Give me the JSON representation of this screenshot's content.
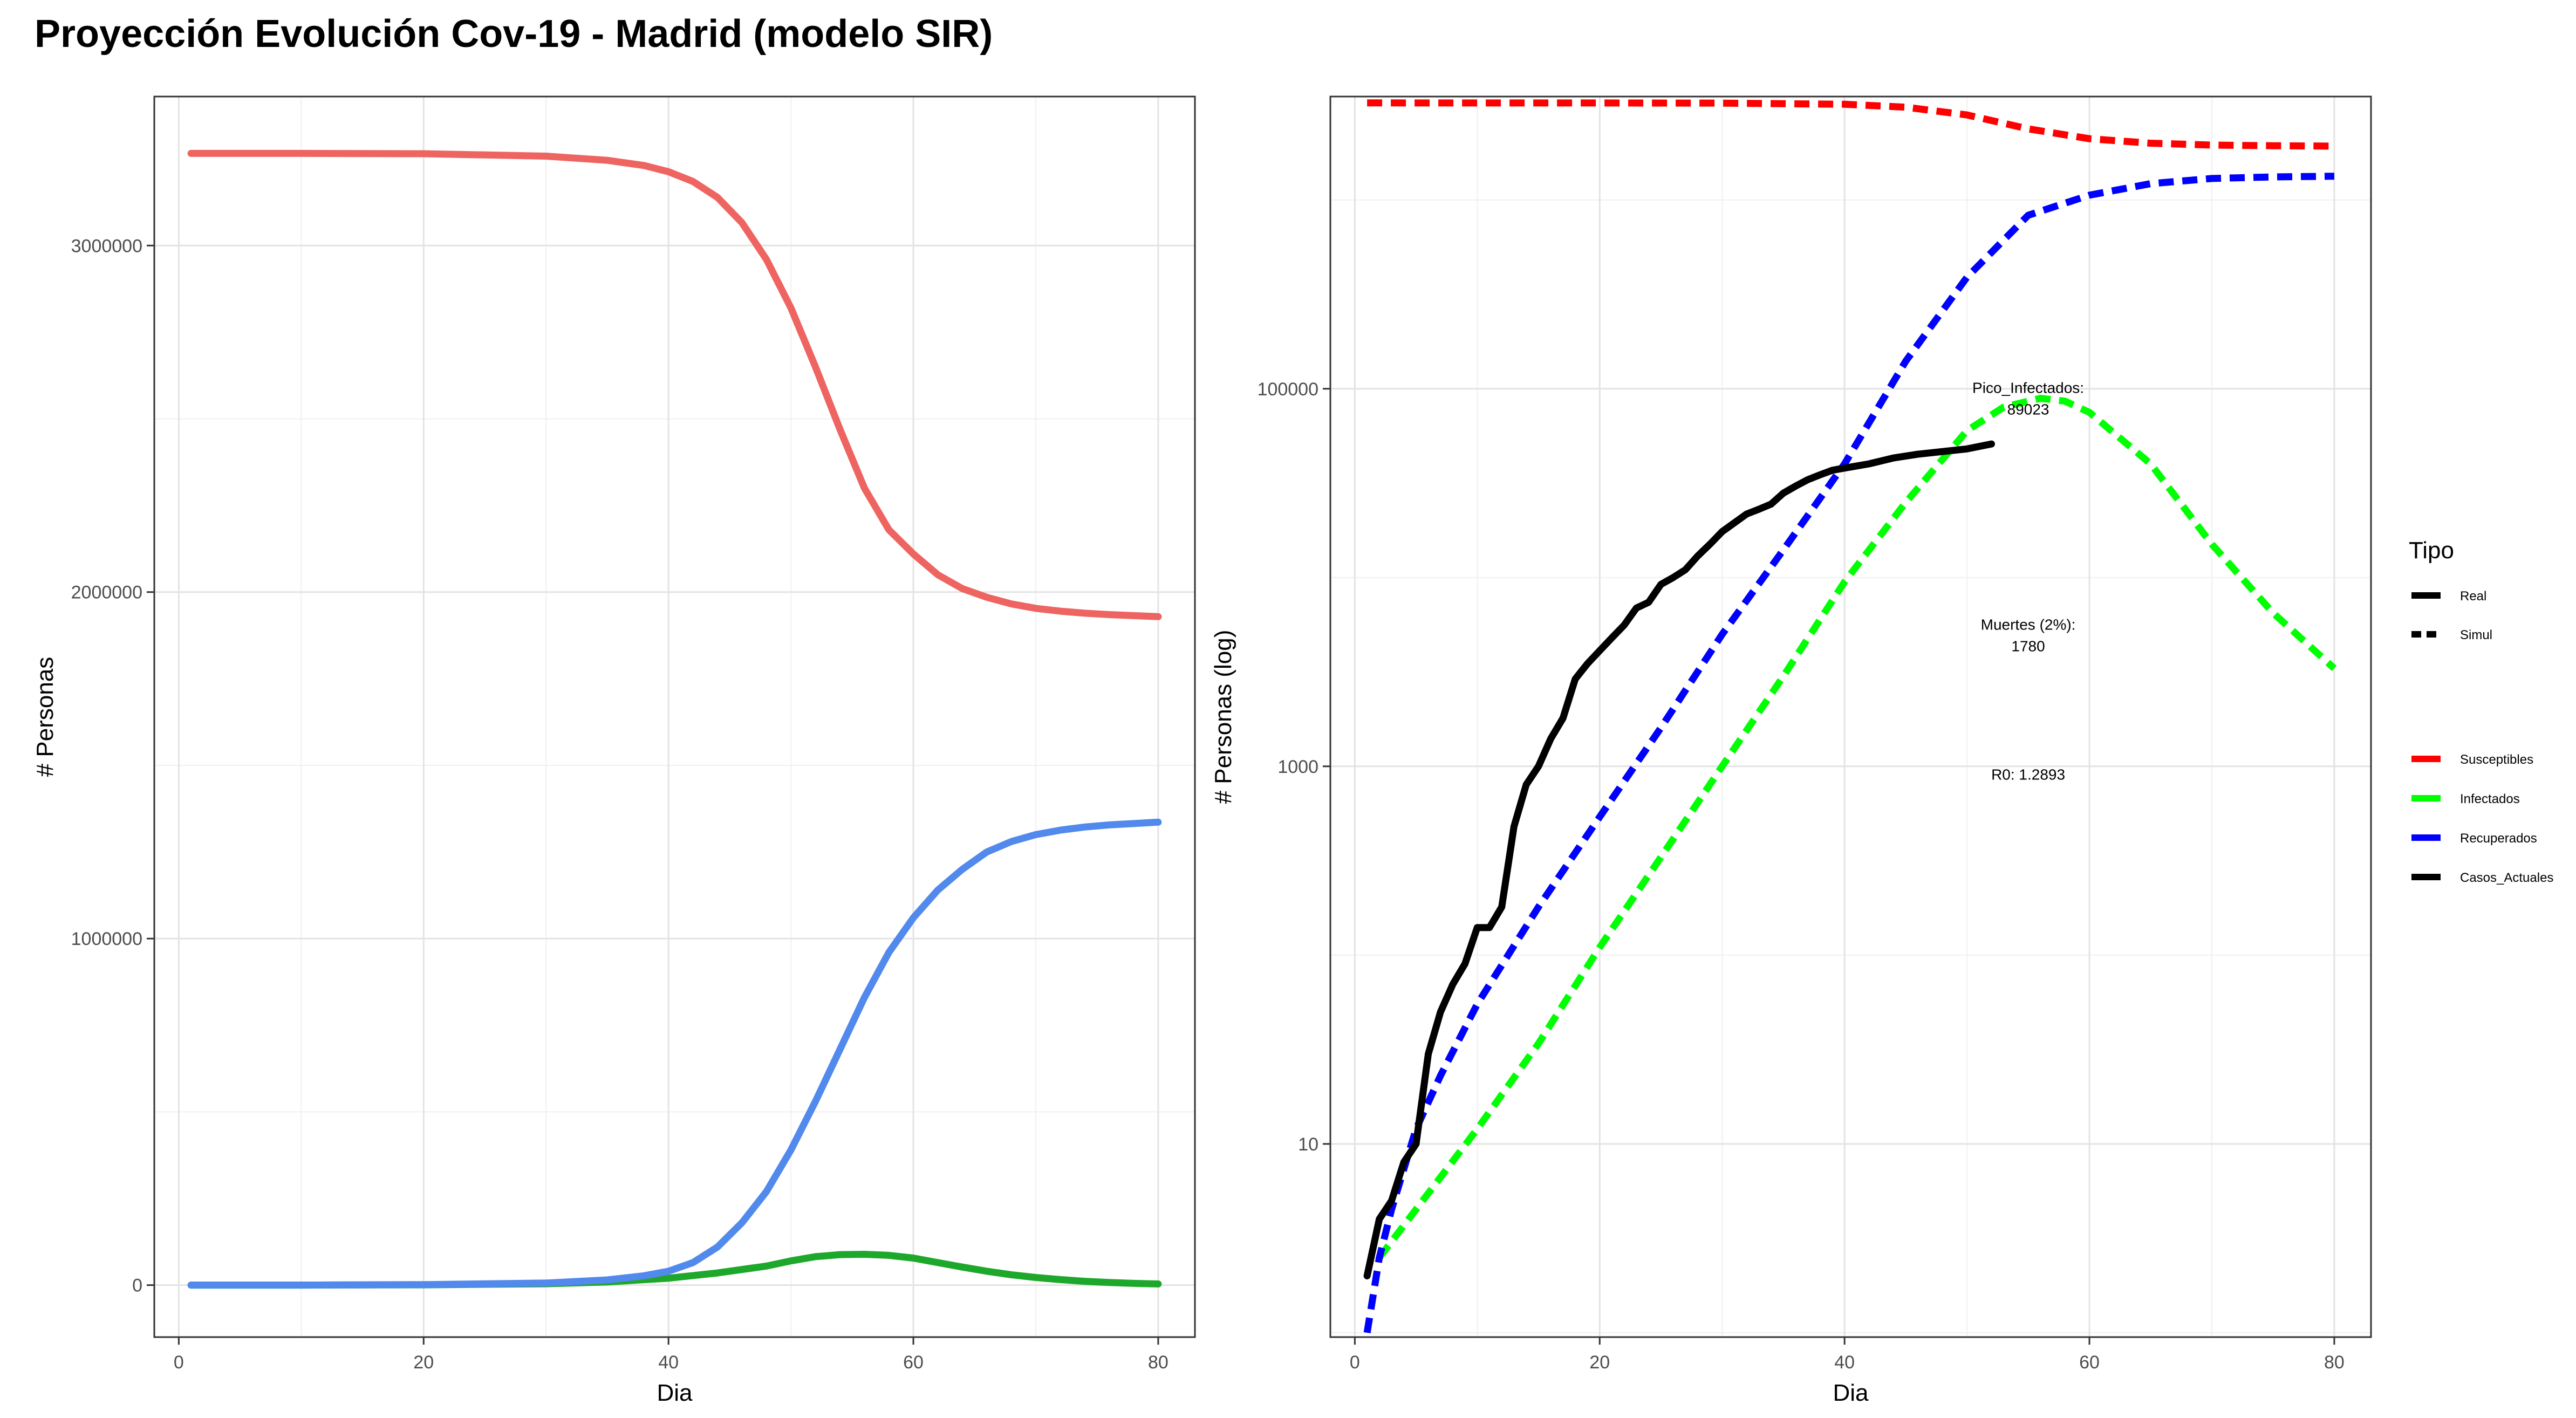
{
  "title": "Proyección Evolución Cov-19 - Madrid (modelo SIR)",
  "chart_data": [
    {
      "type": "line",
      "xlabel": "Dia",
      "ylabel": "# Personas",
      "xlim": [
        -2,
        83
      ],
      "ylim": [
        -150000,
        3430000
      ],
      "x_ticks": [
        0,
        20,
        40,
        60,
        80
      ],
      "x_tick_labels": [
        "0",
        "20",
        "40",
        "60",
        "80"
      ],
      "y_ticks": [
        0,
        1000000,
        2000000,
        3000000
      ],
      "y_tick_labels": [
        "0",
        "1000000",
        "2000000",
        "3000000"
      ],
      "grid": true,
      "series": [
        {
          "color": "#ee6461",
          "x": [
            1,
            10,
            20,
            30,
            35,
            38,
            40,
            42,
            44,
            46,
            48,
            50,
            52,
            54,
            56,
            58,
            60,
            62,
            64,
            66,
            68,
            70,
            72,
            74,
            76,
            78,
            80
          ],
          "values": [
            3266000,
            3266000,
            3265000,
            3258000,
            3246000,
            3231000,
            3213000,
            3185000,
            3139000,
            3066000,
            2960000,
            2820000,
            2650000,
            2470000,
            2300000,
            2180000,
            2110000,
            2050000,
            2010000,
            1985000,
            1966000,
            1953000,
            1945000,
            1939000,
            1935000,
            1932000,
            1929000
          ]
        },
        {
          "color": "#1ea82b",
          "x": [
            1,
            10,
            20,
            30,
            35,
            40,
            44,
            48,
            50,
            52,
            54,
            56,
            58,
            60,
            62,
            64,
            66,
            68,
            70,
            72,
            74,
            76,
            78,
            80
          ],
          "values": [
            0,
            100,
            800,
            4000,
            9000,
            20000,
            35000,
            55000,
            70000,
            82000,
            88000,
            89000,
            86000,
            78000,
            65000,
            52000,
            40000,
            30000,
            22000,
            16000,
            11000,
            7500,
            5000,
            3300
          ]
        },
        {
          "color": "#5289ed",
          "x": [
            1,
            10,
            20,
            30,
            35,
            38,
            40,
            42,
            44,
            46,
            48,
            50,
            52,
            54,
            56,
            58,
            60,
            62,
            64,
            66,
            68,
            70,
            72,
            74,
            76,
            78,
            80
          ],
          "values": [
            0,
            100,
            1500,
            6000,
            15000,
            27000,
            40000,
            65000,
            110000,
            180000,
            270000,
            390000,
            530000,
            680000,
            830000,
            960000,
            1060000,
            1140000,
            1200000,
            1250000,
            1280000,
            1300000,
            1313000,
            1322000,
            1328000,
            1332000,
            1336000
          ]
        }
      ]
    },
    {
      "type": "line",
      "xlabel": "Dia",
      "ylabel": "# Personas (log)",
      "y_scale": "log10",
      "xlim": [
        -2,
        83
      ],
      "ylim": [
        0.948,
        3530000
      ],
      "x_ticks": [
        0,
        20,
        40,
        60,
        80
      ],
      "x_tick_labels": [
        "0",
        "20",
        "40",
        "60",
        "80"
      ],
      "y_ticks": [
        10,
        1000,
        100000
      ],
      "y_tick_labels": [
        "10",
        "1000",
        "100000"
      ],
      "grid": true,
      "legend": {
        "title": "Tipo",
        "position": "right",
        "linetype_entries": [
          "Real",
          "Simul"
        ],
        "color_entries": [
          {
            "label": "Susceptibles",
            "color": "#ff0000"
          },
          {
            "label": "Infectados",
            "color": "#00ff00"
          },
          {
            "label": "Recuperados",
            "color": "#0000ff"
          },
          {
            "label": "Casos_Actuales",
            "color": "#000000"
          }
        ]
      },
      "annotations": [
        {
          "lines": [
            "Pico_Infectados:",
            "89023"
          ],
          "x": 55,
          "y": 95000
        },
        {
          "lines": [
            "Muertes (2%):",
            "1780"
          ],
          "x": 55,
          "y": 5300
        },
        {
          "lines": [
            "R0: 1.2893"
          ],
          "x": 55,
          "y": 850
        }
      ],
      "series": [
        {
          "name": "Susceptibles",
          "color": "#ff0000",
          "dash": true,
          "x": [
            1,
            20,
            30,
            40,
            45,
            50,
            55,
            60,
            65,
            70,
            75,
            80
          ],
          "values": [
            3266000,
            3265000,
            3258000,
            3213000,
            3100000,
            2820000,
            2380000,
            2110000,
            1998000,
            1953000,
            1937000,
            1929000
          ]
        },
        {
          "name": "Infectados",
          "color": "#00ff00",
          "dash": true,
          "x": [
            2,
            5,
            10,
            15,
            20,
            25,
            30,
            35,
            40,
            45,
            50,
            53,
            56,
            58,
            60,
            65,
            70,
            75,
            80
          ],
          "values": [
            2.5,
            4.5,
            12,
            34,
            110,
            330,
            1000,
            3000,
            9500,
            25000,
            60000,
            80000,
            89023,
            86000,
            75000,
            40000,
            15000,
            6500,
            3300
          ]
        },
        {
          "name": "Recuperados",
          "color": "#0000ff",
          "dash": true,
          "x": [
            1,
            2,
            3,
            5,
            7,
            10,
            15,
            20,
            25,
            30,
            35,
            40,
            45,
            50,
            55,
            60,
            65,
            70,
            75,
            80
          ],
          "values": [
            1,
            2.5,
            4.5,
            12,
            23,
            55,
            180,
            540,
            1600,
            5000,
            14000,
            40000,
            140000,
            390000,
            830000,
            1060000,
            1220000,
            1300000,
            1325000,
            1336000
          ]
        },
        {
          "name": "Casos_Actuales",
          "color": "#000000",
          "dash": false,
          "x": [
            1,
            2,
            3,
            4,
            5,
            6,
            7,
            8,
            9,
            10,
            11,
            12,
            13,
            14,
            15,
            16,
            17,
            18,
            19,
            20,
            21,
            22,
            23,
            24,
            25,
            26,
            27,
            28,
            29,
            30,
            31,
            32,
            33,
            34,
            35,
            36,
            37,
            38,
            39,
            40,
            42,
            44,
            46,
            48,
            50,
            52
          ],
          "values": [
            2,
            4,
            5,
            8,
            10,
            30,
            50,
            70,
            90,
            140,
            140,
            180,
            480,
            800,
            1000,
            1400,
            1800,
            2900,
            3500,
            4100,
            4800,
            5600,
            6900,
            7400,
            9200,
            10000,
            11000,
            13000,
            15000,
            17500,
            19500,
            21700,
            23000,
            24500,
            28000,
            30500,
            33000,
            35000,
            37000,
            38000,
            40000,
            43000,
            45000,
            46500,
            48000,
            51000
          ]
        }
      ]
    }
  ]
}
